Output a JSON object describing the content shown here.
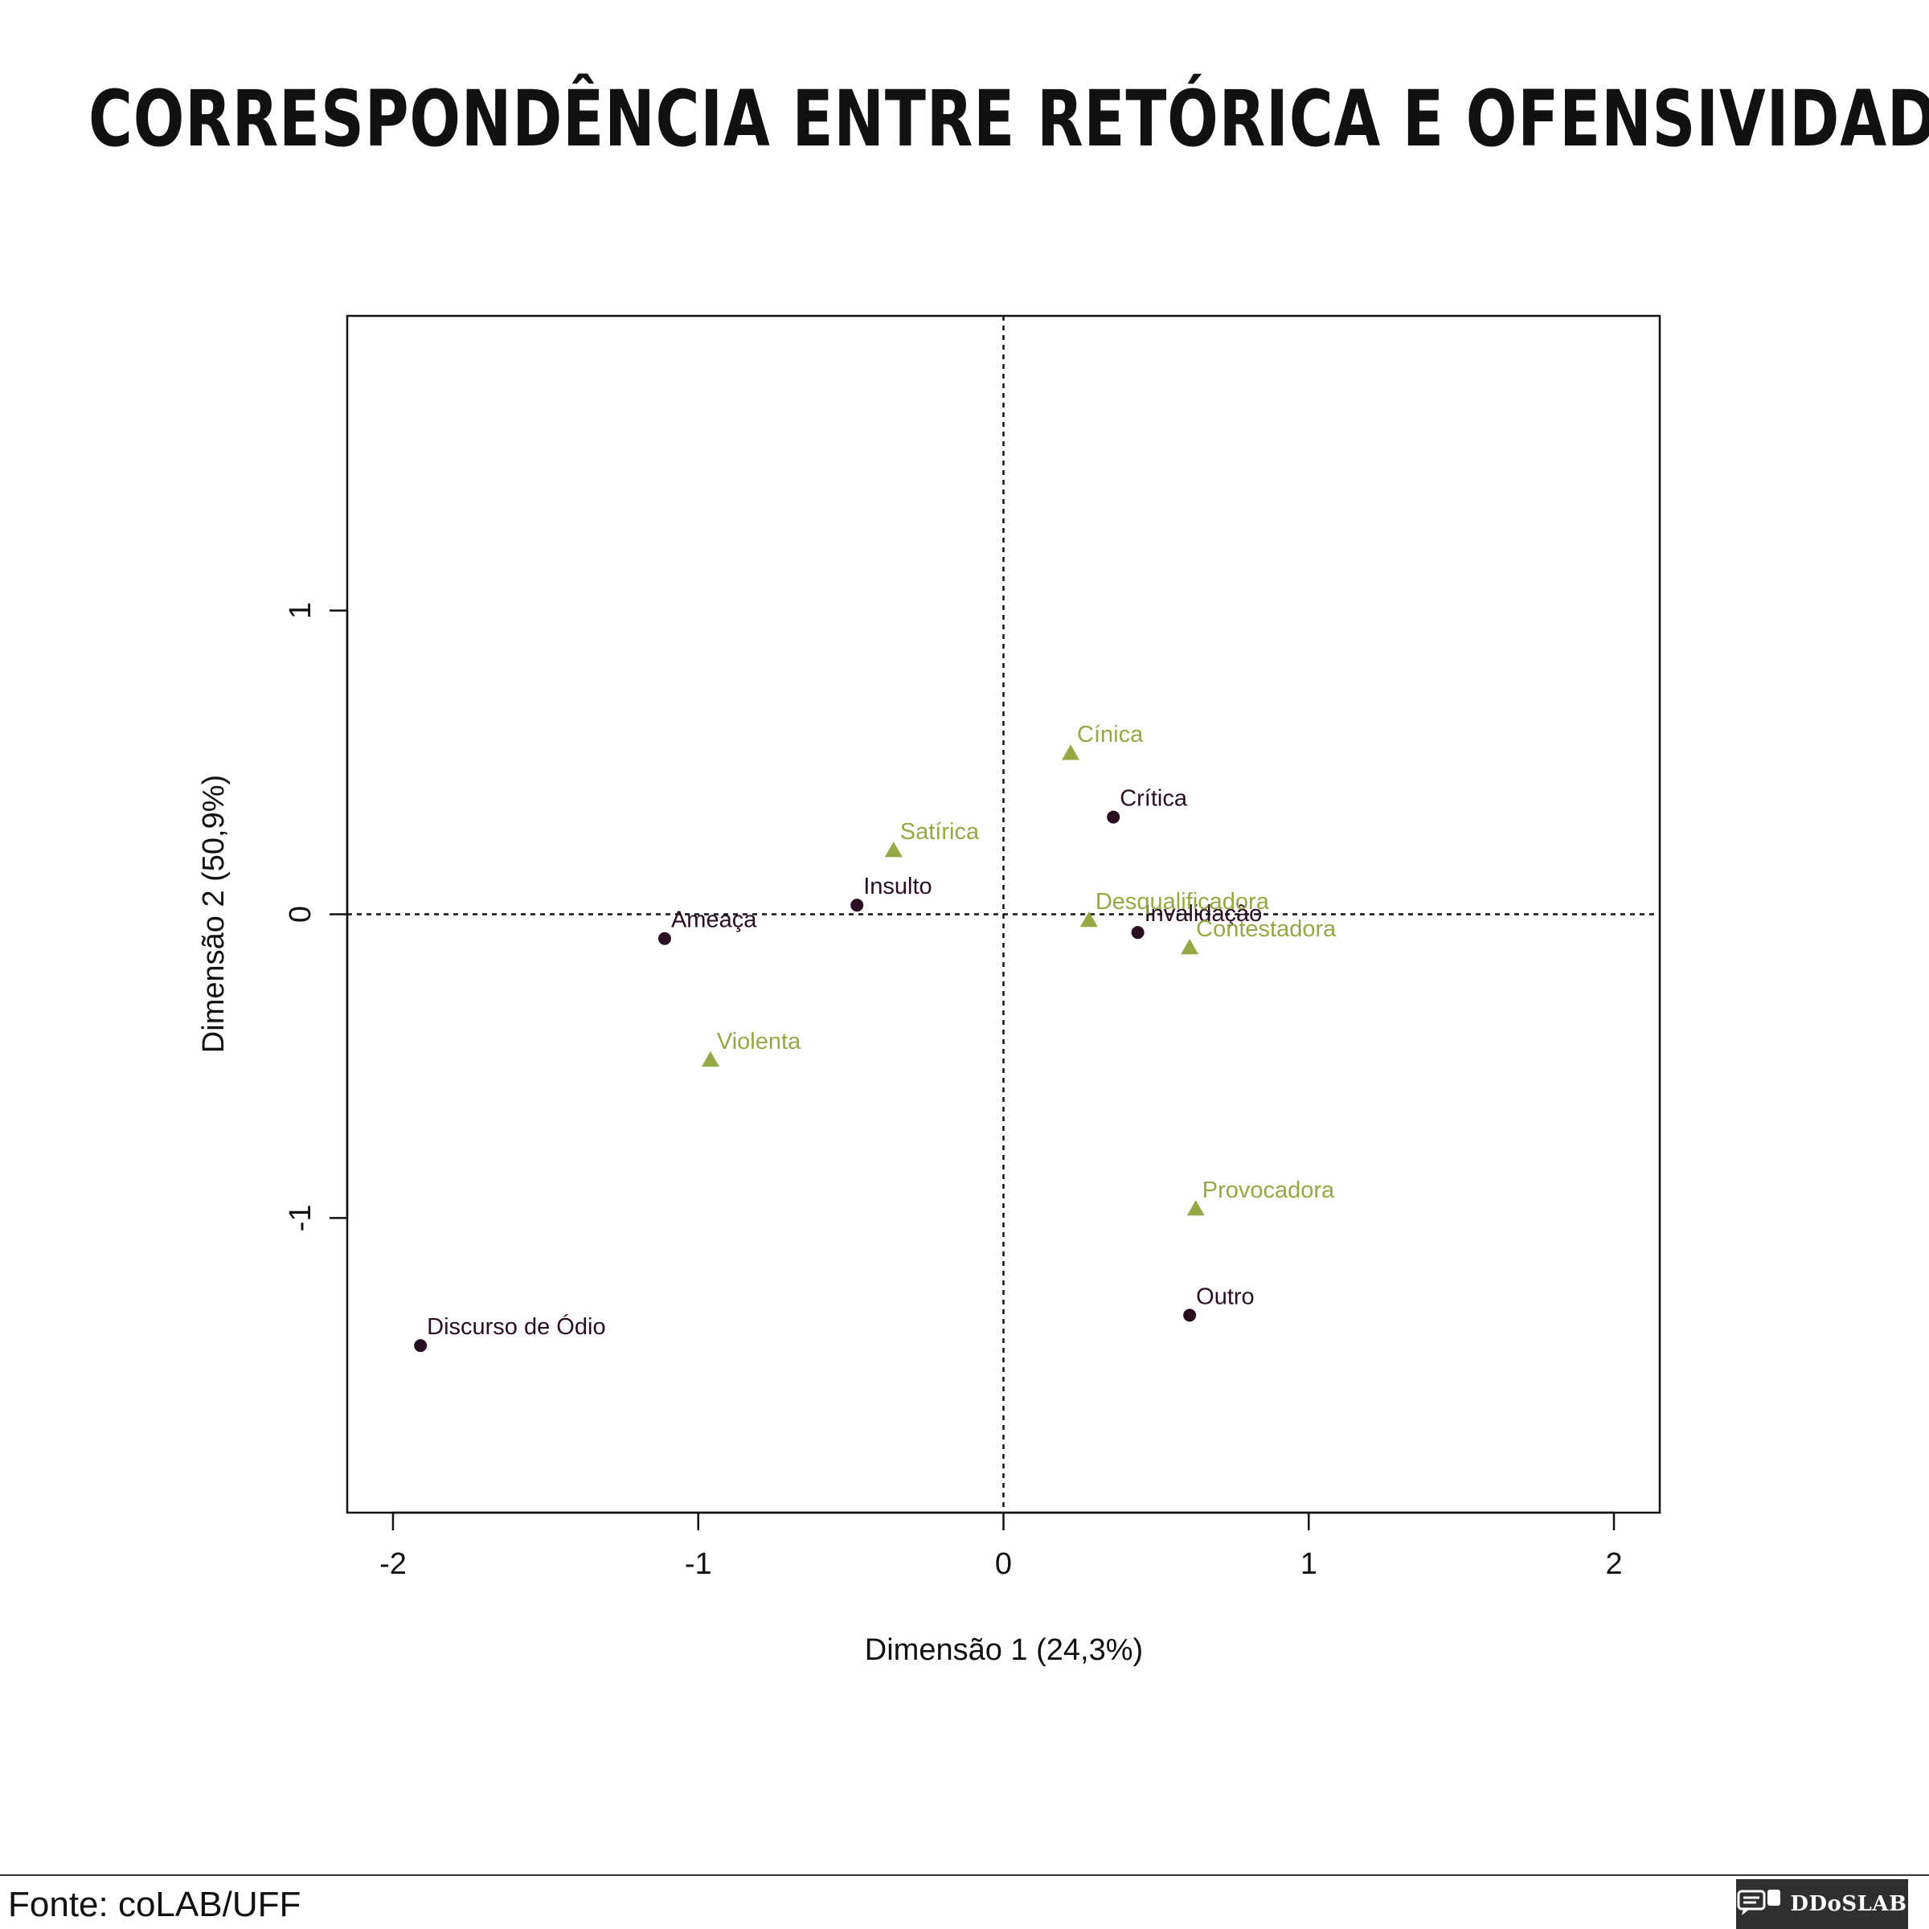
{
  "title": "Correspondência entre retórica e ofensividade",
  "source": "Fonte: coLAB/UFF",
  "brand": {
    "name": "DDoSLAB",
    "icon": "chat-bubbles-icon"
  },
  "chart_data": {
    "type": "scatter",
    "xlabel": "Dimensão 1 (24,3%)",
    "ylabel": "Dimensão 2 (50,9%)",
    "xlim": [
      -2.15,
      2.15
    ],
    "ylim": [
      -1.97,
      1.97
    ],
    "xticks": [
      -2,
      -1,
      0,
      1,
      2
    ],
    "yticks": [
      -1,
      0,
      1
    ],
    "xtick_labels": [
      "-2",
      "-1",
      "0",
      "1",
      "2"
    ],
    "ytick_labels": [
      "-1",
      "0",
      "1"
    ],
    "reference_lines": {
      "x": 0,
      "y": 0,
      "style": "dotted"
    },
    "grid": false,
    "legend": "none",
    "series": [
      {
        "marker": "circle",
        "color": "#2a0f22",
        "points": [
          {
            "label": "Crítica",
            "x": 0.36,
            "y": 0.32
          },
          {
            "label": "Insulto",
            "x": -0.48,
            "y": 0.03
          },
          {
            "label": "Ameaça",
            "x": -1.11,
            "y": -0.08
          },
          {
            "label": "Invalidação",
            "x": 0.44,
            "y": -0.06
          },
          {
            "label": "Outro",
            "x": 0.61,
            "y": -1.32
          },
          {
            "label": "Discurso de Ódio",
            "x": -1.91,
            "y": -1.42
          }
        ]
      },
      {
        "marker": "triangle",
        "color": "#94a843",
        "points": [
          {
            "label": "Cínica",
            "x": 0.22,
            "y": 0.53
          },
          {
            "label": "Satírica",
            "x": -0.36,
            "y": 0.21
          },
          {
            "label": "Desqualificadora",
            "x": 0.28,
            "y": -0.02
          },
          {
            "label": "Contestadora",
            "x": 0.61,
            "y": -0.11
          },
          {
            "label": "Violenta",
            "x": -0.96,
            "y": -0.48
          },
          {
            "label": "Provocadora",
            "x": 0.63,
            "y": -0.97
          }
        ]
      }
    ]
  }
}
